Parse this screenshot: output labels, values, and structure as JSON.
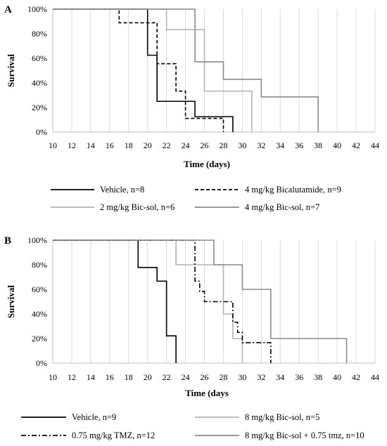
{
  "chart_data": [
    {
      "type": "line",
      "panel_label": "A",
      "title": "",
      "xlabel": "Time (days)",
      "ylabel": "Survival",
      "xlim": [
        10,
        44
      ],
      "ylim": [
        0,
        100
      ],
      "xticks": [
        10,
        12,
        14,
        16,
        18,
        20,
        22,
        24,
        26,
        28,
        30,
        32,
        34,
        36,
        38,
        40,
        42,
        44
      ],
      "yticks": [
        0,
        20,
        40,
        60,
        80,
        100
      ],
      "ytick_labels": [
        "0%",
        "20%",
        "40%",
        "60%",
        "80%",
        "100%"
      ],
      "grid": "vertical",
      "legend_position": "bottom",
      "series": [
        {
          "name": "Vehicle, n=8",
          "color": "#000000",
          "style": "solid",
          "x": [
            10,
            20,
            20,
            21,
            21,
            25,
            25,
            29,
            29
          ],
          "y": [
            100,
            100,
            62.5,
            62.5,
            25,
            25,
            12.5,
            12.5,
            0
          ]
        },
        {
          "name": "4 mg/kg Bicalutamide, n=9",
          "color": "#000000",
          "style": "dashed",
          "x": [
            10,
            17,
            17,
            21,
            21,
            23,
            23,
            24,
            24,
            28,
            28
          ],
          "y": [
            100,
            100,
            88.9,
            88.9,
            55.6,
            55.6,
            33.3,
            33.3,
            11.1,
            11.1,
            0
          ]
        },
        {
          "name": "2 mg/kg Bic-sol, n=6",
          "color": "#b4b4b4",
          "style": "solid",
          "x": [
            10,
            22,
            22,
            26,
            26,
            31,
            31
          ],
          "y": [
            100,
            100,
            83.3,
            83.3,
            33.3,
            33.3,
            0
          ]
        },
        {
          "name": "4 mg/kg Bic-sol, n=7",
          "color": "#8a8a8a",
          "style": "solid",
          "x": [
            10,
            25,
            25,
            28,
            28,
            32,
            32,
            38,
            38
          ],
          "y": [
            100,
            100,
            57.1,
            57.1,
            42.9,
            42.9,
            28.6,
            28.6,
            0
          ]
        }
      ]
    },
    {
      "type": "line",
      "panel_label": "B",
      "title": "",
      "xlabel": "Time (days",
      "ylabel": "Survival",
      "xlim": [
        10,
        44
      ],
      "ylim": [
        0,
        100
      ],
      "xticks": [
        10,
        12,
        14,
        16,
        18,
        20,
        22,
        24,
        26,
        28,
        30,
        32,
        34,
        36,
        38,
        40,
        42,
        44
      ],
      "yticks": [
        0,
        20,
        40,
        60,
        80,
        100
      ],
      "ytick_labels": [
        "0%",
        "20%",
        "40%",
        "60%",
        "80%",
        "100%"
      ],
      "grid": "vertical",
      "legend_position": "bottom",
      "series": [
        {
          "name": "Vehicle, n=9",
          "color": "#000000",
          "style": "solid",
          "x": [
            10,
            19,
            19,
            21,
            21,
            22,
            22,
            23,
            23
          ],
          "y": [
            100,
            100,
            77.8,
            77.8,
            66.7,
            66.7,
            22.2,
            22.2,
            0
          ]
        },
        {
          "name": "8 mg/kg Bic-sol, n=5",
          "color": "#b4b4b4",
          "style": "solid",
          "x": [
            10,
            23,
            23,
            28,
            28,
            29,
            29,
            30,
            30
          ],
          "y": [
            100,
            100,
            80,
            80,
            40,
            40,
            20,
            20,
            0
          ]
        },
        {
          "name": "0.75 mg/kg TMZ, n=12",
          "color": "#000000",
          "style": "dashdot",
          "x": [
            10,
            25,
            25,
            25.5,
            25.5,
            26,
            26,
            29,
            29,
            29.5,
            29.5,
            30,
            30,
            33,
            33
          ],
          "y": [
            100,
            100,
            66.7,
            66.7,
            58.3,
            58.3,
            50,
            50,
            33.3,
            33.3,
            25,
            25,
            16.7,
            16.7,
            0
          ]
        },
        {
          "name": "8 mg/kg Bic-sol + 0.75 tmz, n=10",
          "color": "#8a8a8a",
          "style": "solid",
          "x": [
            10,
            27,
            27,
            30,
            30,
            33,
            33,
            41,
            41
          ],
          "y": [
            100,
            100,
            80,
            80,
            60,
            60,
            20,
            20,
            0
          ]
        }
      ]
    }
  ]
}
